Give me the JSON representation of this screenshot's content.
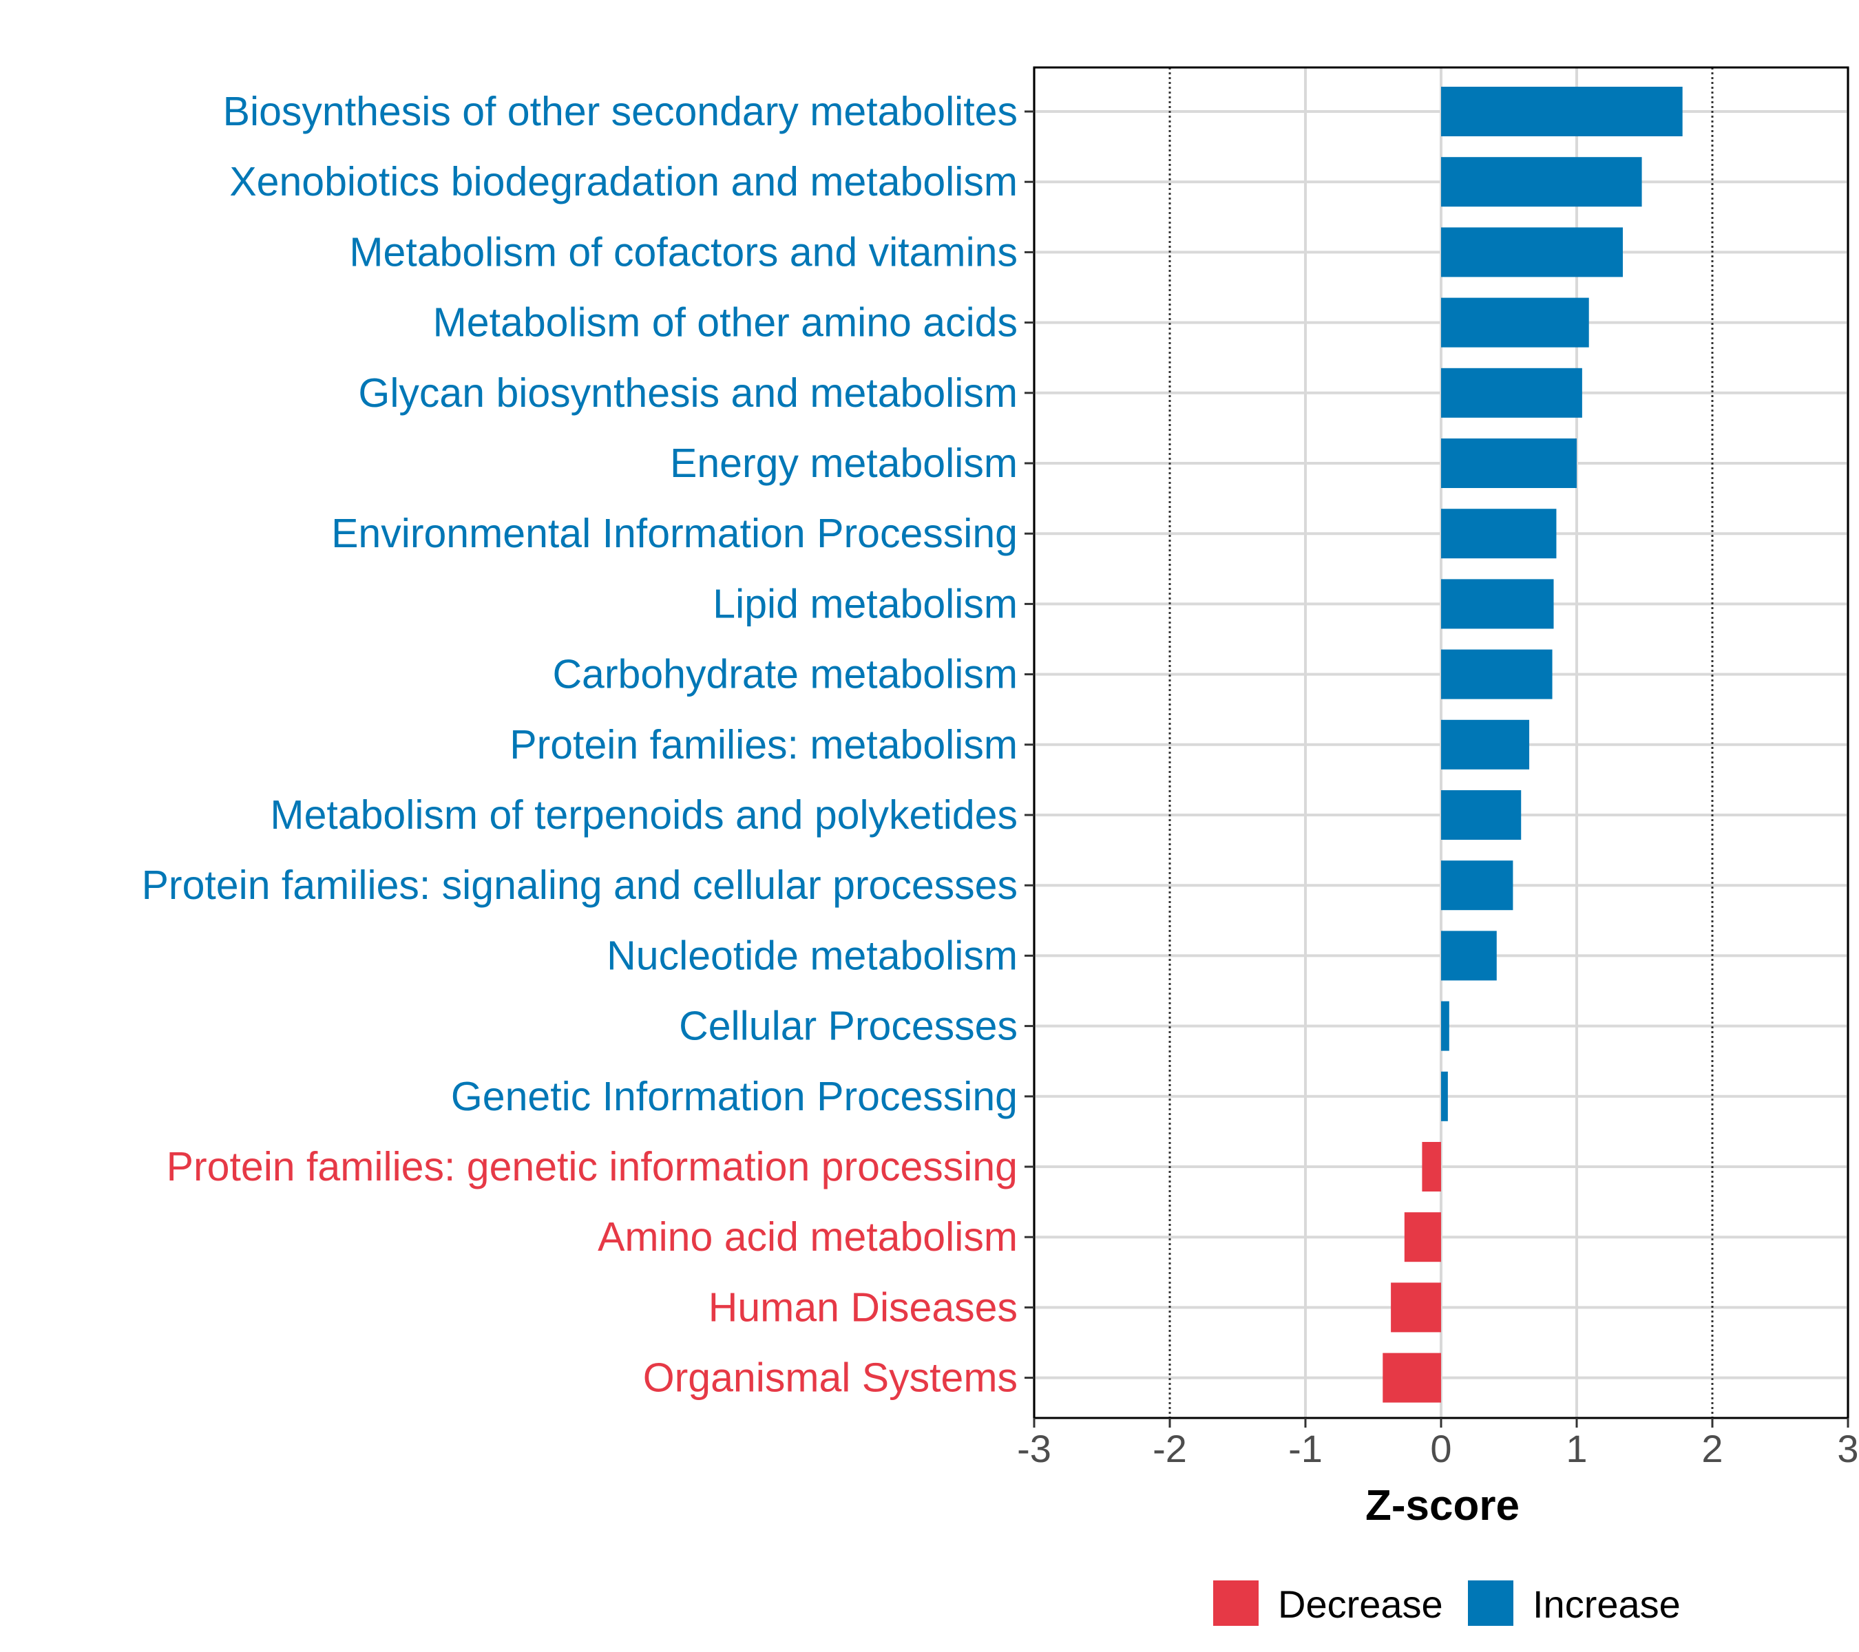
{
  "chart_data": {
    "type": "bar",
    "orientation": "horizontal",
    "title": "",
    "xlabel": "Z-score",
    "ylabel": "",
    "xlim": [
      -3,
      3
    ],
    "xticks": [
      "-3",
      "-2",
      "-1",
      "0",
      "1",
      "2",
      "3"
    ],
    "xtick_values": [
      -3,
      -2,
      -1,
      0,
      1,
      2,
      3
    ],
    "reference_lines": [
      -2,
      2
    ],
    "grid": true,
    "colors": {
      "Decrease": "#e63946",
      "Increase": "#0077b6"
    },
    "categories": [
      "Biosynthesis of other secondary metabolites",
      "Xenobiotics biodegradation and metabolism",
      "Metabolism of cofactors and vitamins",
      "Metabolism of other amino acids",
      "Glycan biosynthesis and metabolism",
      "Energy metabolism",
      "Environmental Information Processing",
      "Lipid metabolism",
      "Carbohydrate metabolism",
      "Protein families: metabolism",
      "Metabolism of terpenoids and polyketides",
      "Protein families: signaling and cellular processes",
      "Nucleotide metabolism",
      "Cellular Processes",
      "Genetic Information Processing",
      "Protein families: genetic information processing",
      "Amino acid metabolism",
      "Human Diseases",
      "Organismal Systems"
    ],
    "values": [
      1.78,
      1.48,
      1.34,
      1.09,
      1.04,
      1.0,
      0.85,
      0.83,
      0.82,
      0.65,
      0.59,
      0.53,
      0.41,
      0.06,
      0.05,
      -0.14,
      -0.27,
      -0.37,
      -0.43
    ],
    "groups": [
      "Increase",
      "Increase",
      "Increase",
      "Increase",
      "Increase",
      "Increase",
      "Increase",
      "Increase",
      "Increase",
      "Increase",
      "Increase",
      "Increase",
      "Increase",
      "Increase",
      "Increase",
      "Decrease",
      "Decrease",
      "Decrease",
      "Decrease"
    ],
    "legend": {
      "position": "bottom",
      "entries": [
        {
          "label": "Decrease",
          "color": "#e63946"
        },
        {
          "label": "Increase",
          "color": "#0077b6"
        }
      ]
    }
  }
}
